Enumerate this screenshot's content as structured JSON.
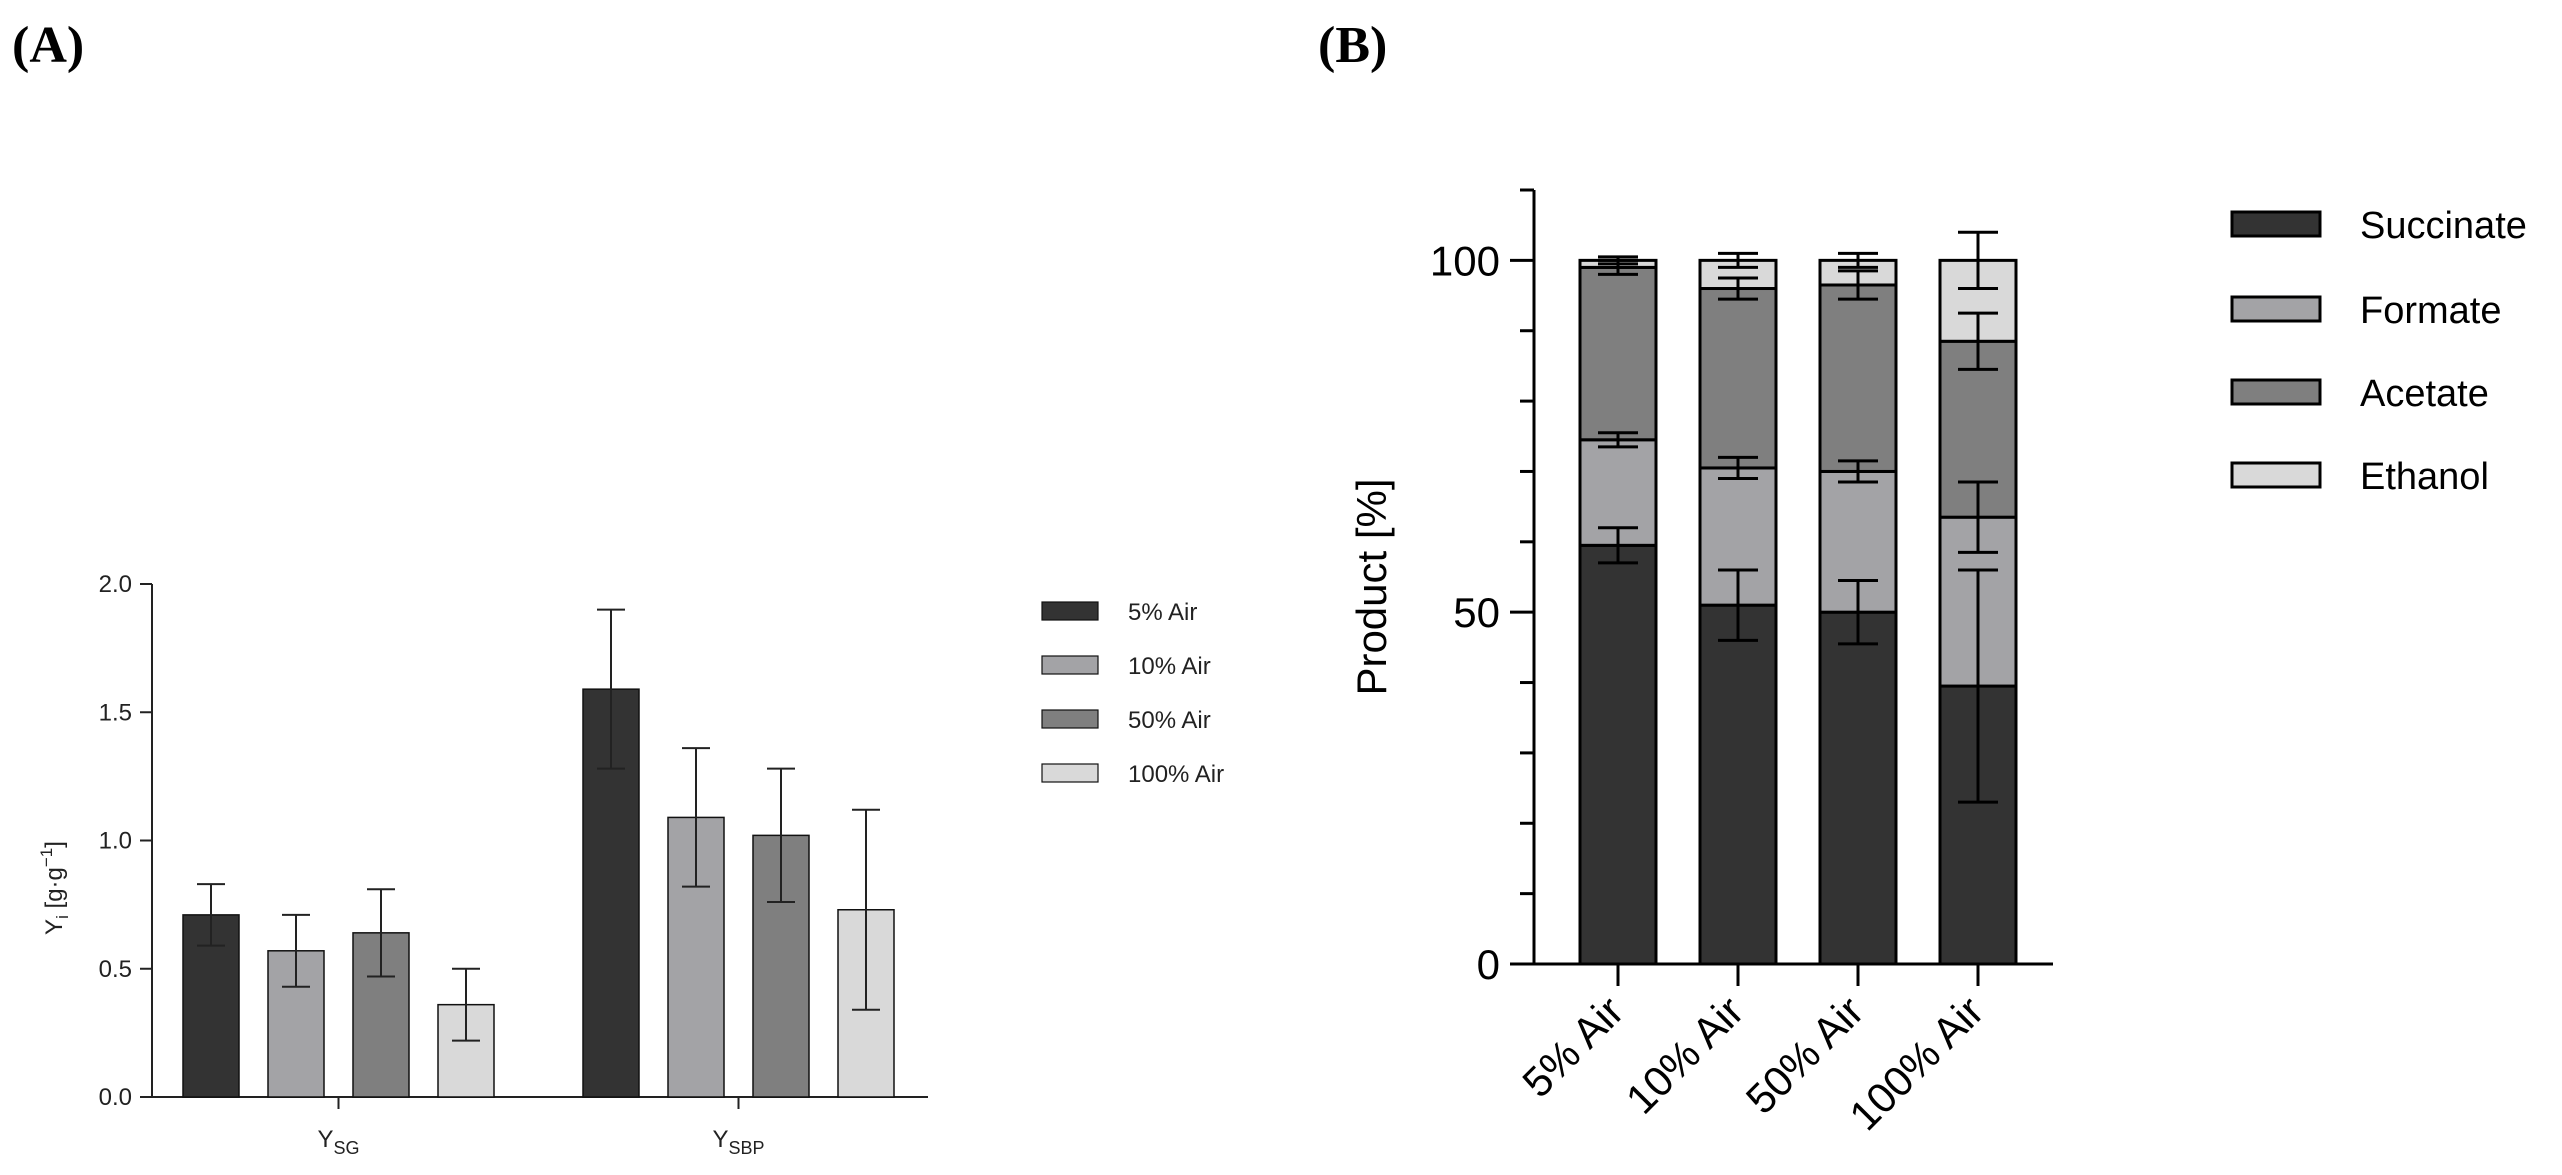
{
  "figure": {
    "panel_a_label": "(A)",
    "panel_b_label": "(B)"
  },
  "chart_data": [
    {
      "type": "bar",
      "panel": "A",
      "categories": [
        "SG",
        "SBP"
      ],
      "category_labels": [
        {
          "main": "Y",
          "sub": "SG"
        },
        {
          "main": "Y",
          "sub": "SBP"
        }
      ],
      "ylabel": {
        "main": "Y",
        "sub": "i",
        "unit_pre": " [g·g",
        "sup": "−1",
        "unit_post": "]"
      },
      "ylim": [
        0,
        2.0
      ],
      "yticks": [
        0.0,
        0.5,
        1.0,
        1.5,
        2.0
      ],
      "ytick_labels": [
        "0.0",
        "0.5",
        "1.0",
        "1.5",
        "2.0"
      ],
      "series": [
        {
          "name": "5% Air",
          "color": "#333333",
          "values": [
            0.71,
            1.59
          ],
          "errors": [
            0.12,
            0.31
          ]
        },
        {
          "name": "10% Air",
          "color": "#a3a3a6",
          "values": [
            0.57,
            1.09
          ],
          "errors": [
            0.14,
            0.27
          ]
        },
        {
          "name": "50% Air",
          "color": "#7f7f7f",
          "values": [
            0.64,
            1.02
          ],
          "errors": [
            0.17,
            0.26
          ]
        },
        {
          "name": "100% Air",
          "color": "#d9d9d9",
          "values": [
            0.36,
            0.73
          ],
          "errors": [
            0.14,
            0.39
          ]
        }
      ],
      "legend_position": "right"
    },
    {
      "type": "bar",
      "stacked": true,
      "panel": "B",
      "categories": [
        "5% Air",
        "10% Air",
        "50% Air",
        "100% Air"
      ],
      "ylabel": "Product [%]",
      "ylim": [
        0,
        110
      ],
      "yticks": [
        0,
        50,
        100
      ],
      "ytick_labels": [
        "0",
        "50",
        "100"
      ],
      "series": [
        {
          "name": "Succinate",
          "color": "#333333",
          "values": [
            59.5,
            51,
            50,
            39.5
          ],
          "errors": [
            2.5,
            5,
            4.5,
            16.5
          ]
        },
        {
          "name": "Formate",
          "color": "#a3a3a6",
          "values": [
            15,
            19.5,
            20,
            24
          ],
          "errors": [
            1,
            1.5,
            1.5,
            5
          ]
        },
        {
          "name": "Acetate",
          "color": "#7f7f7f",
          "values": [
            24.5,
            25.5,
            26.5,
            25
          ],
          "errors": [
            1,
            1.5,
            2,
            4
          ]
        },
        {
          "name": "Ethanol",
          "color": "#d9d9d9",
          "values": [
            1,
            4,
            3.5,
            11.5
          ],
          "errors": [
            0.5,
            1,
            1,
            4
          ]
        }
      ],
      "legend_position": "right"
    }
  ]
}
